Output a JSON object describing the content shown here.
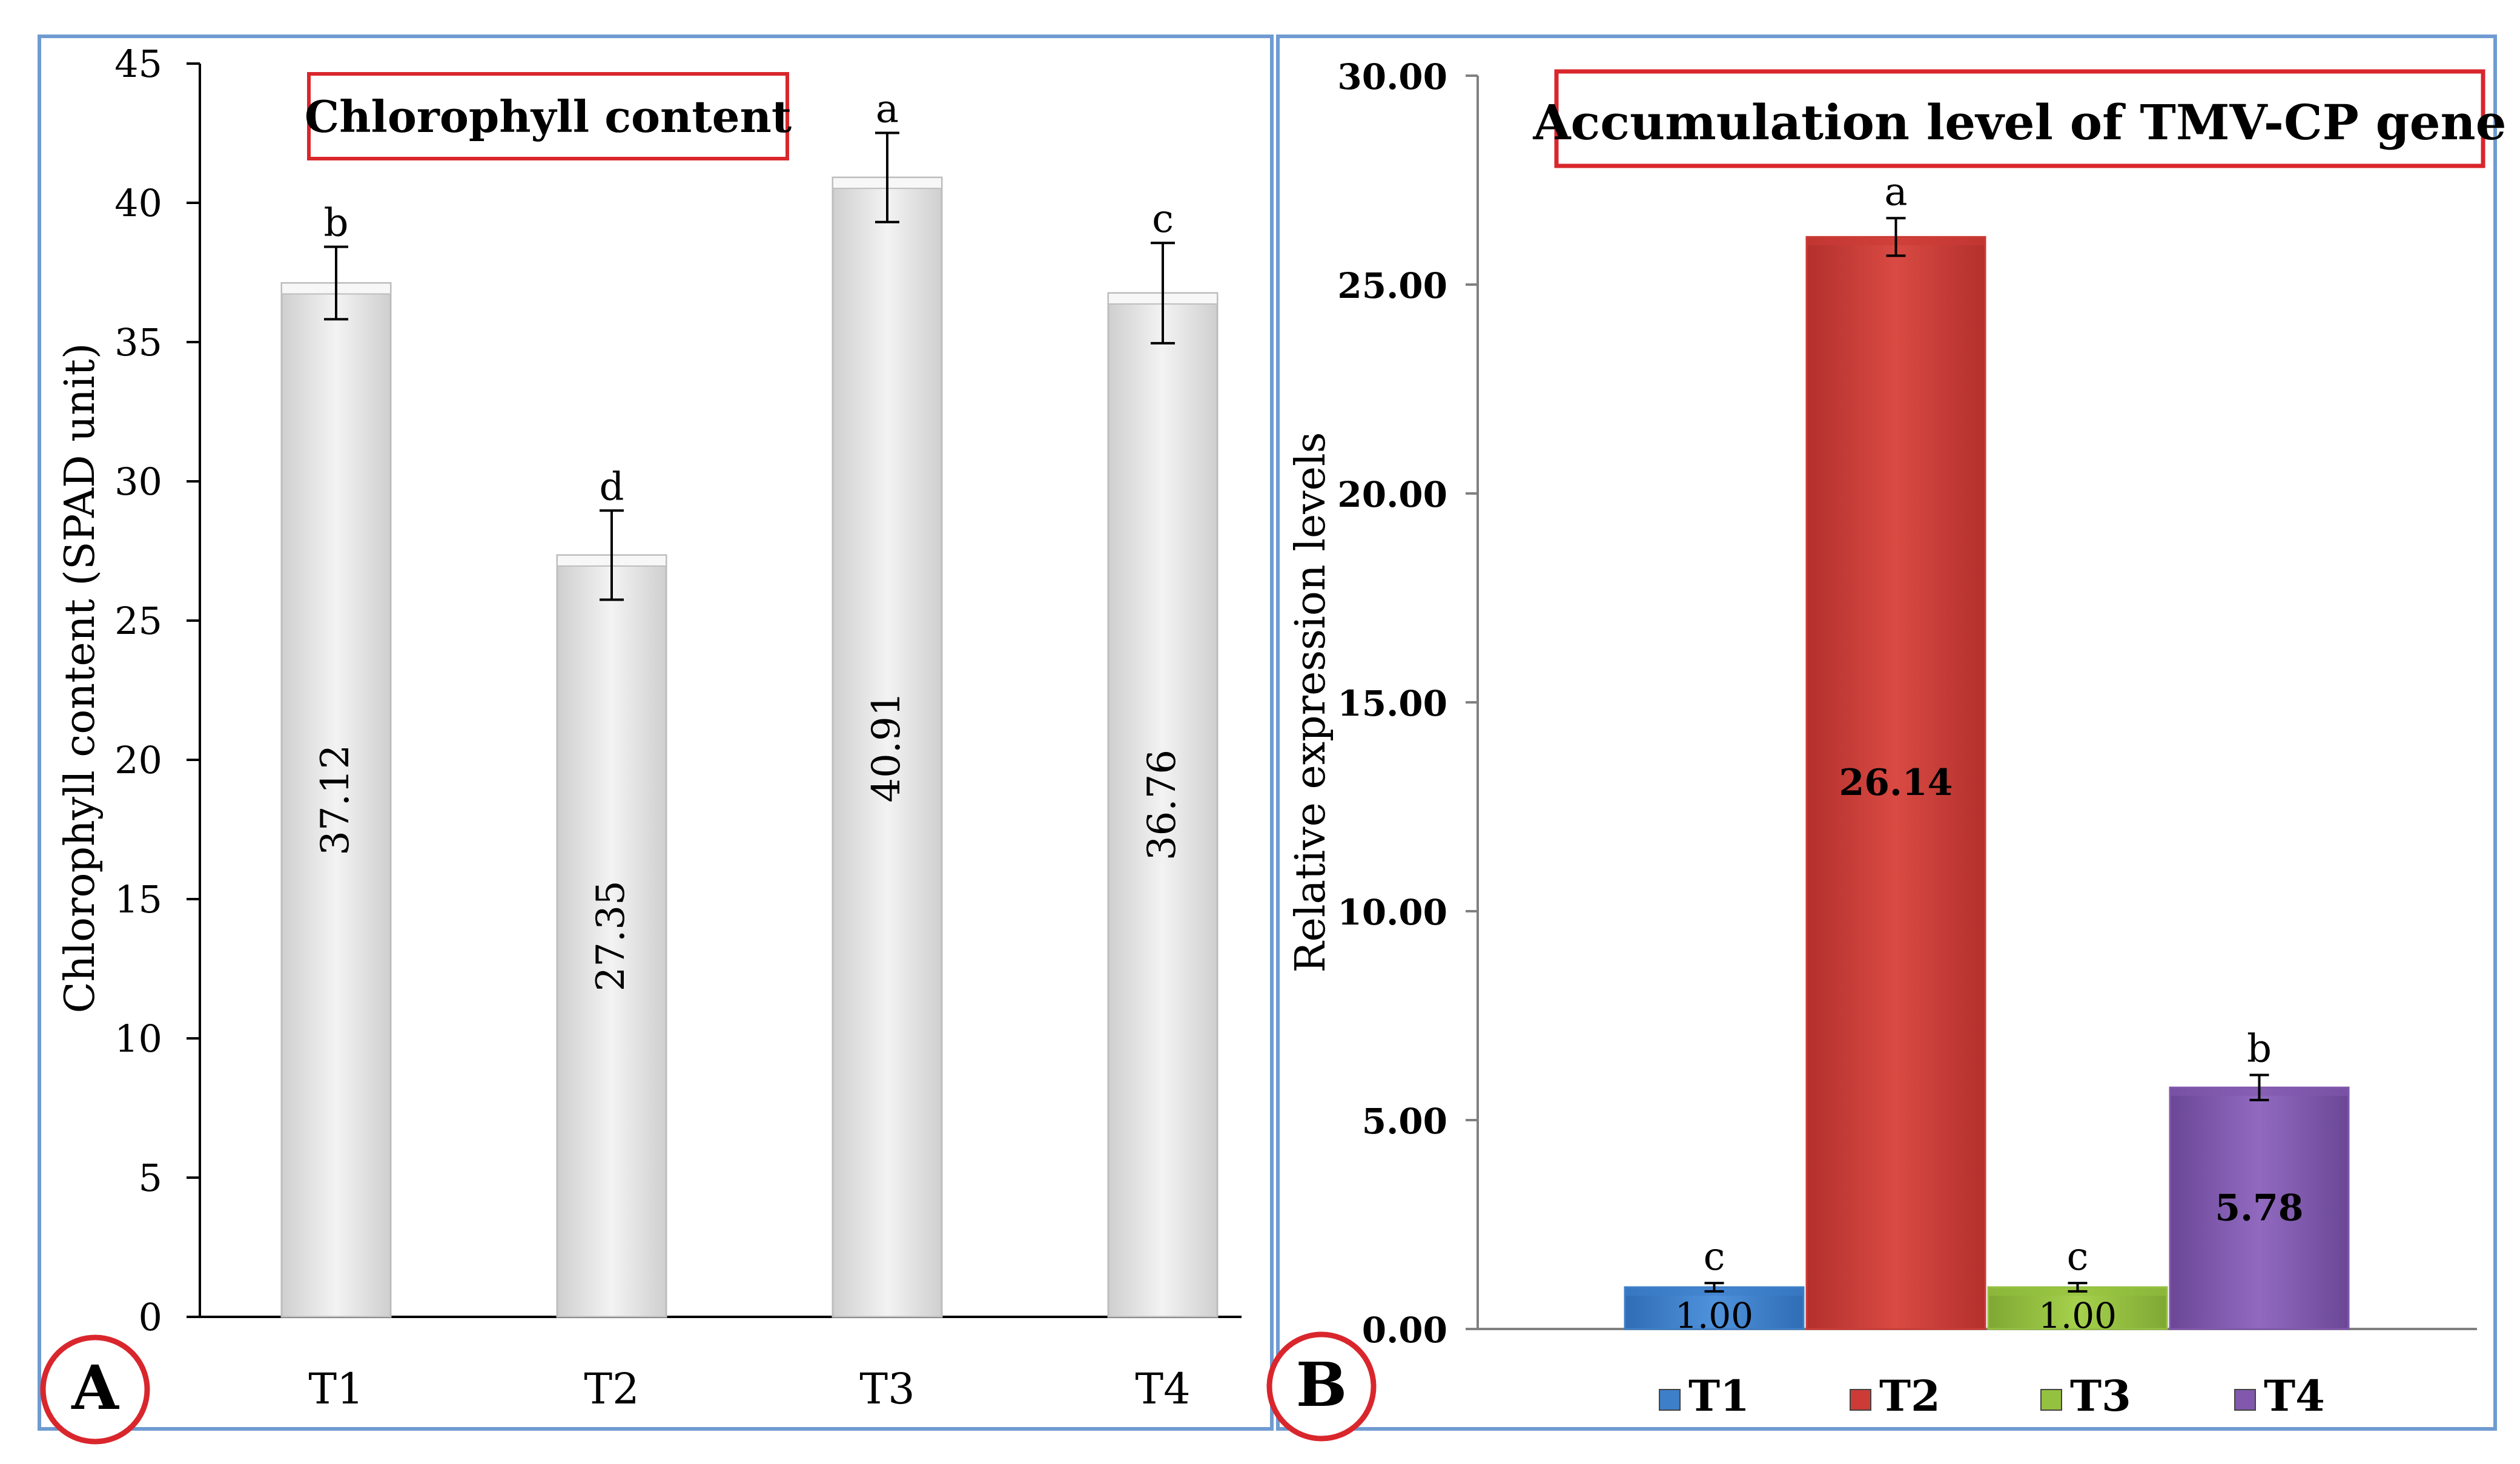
{
  "chart_data": [
    {
      "panel_label": "A",
      "type": "bar",
      "title": "Chlorophyll content",
      "ylabel": "Chlorophyll content (SPAD unit)",
      "xlabel": "",
      "categories": [
        "T1",
        "T2",
        "T3",
        "T4"
      ],
      "values": [
        37.12,
        27.35,
        40.91,
        36.76
      ],
      "value_labels": [
        "37.12",
        "27.35",
        "40.91",
        "36.76"
      ],
      "error": [
        1.3,
        1.6,
        1.6,
        1.8
      ],
      "letters": [
        "b",
        "d",
        "a",
        "c"
      ],
      "ylim": [
        0,
        45
      ],
      "yticks": [
        0,
        5,
        10,
        15,
        20,
        25,
        30,
        35,
        40,
        45
      ],
      "ytick_labels": [
        "0",
        "5",
        "10",
        "15",
        "20",
        "25",
        "30",
        "35",
        "40",
        "45"
      ],
      "grid": false,
      "legend": "none",
      "colors": {
        "bar": "#e4e4e4",
        "bar_edge": "#bdbdbd",
        "frame": "#6f9bd1",
        "title_box": "#d9262c",
        "panel_circle": "#d9262c"
      }
    },
    {
      "panel_label": "B",
      "type": "bar",
      "title": "Accumulation level of TMV-CP gene",
      "ylabel": "Relative expression levels",
      "xlabel": "",
      "categories": [
        "T1",
        "T2",
        "T3",
        "T4"
      ],
      "values": [
        1.0,
        26.14,
        1.0,
        5.78
      ],
      "value_labels": [
        "1.00",
        "26.14",
        "1.00",
        "5.78"
      ],
      "error": [
        0.1,
        0.45,
        0.1,
        0.3
      ],
      "letters": [
        "c",
        "a",
        "c",
        "b"
      ],
      "ylim": [
        0,
        30
      ],
      "yticks": [
        0,
        5,
        10,
        15,
        20,
        25,
        30
      ],
      "ytick_labels": [
        "0.00",
        "5.00",
        "10.00",
        "15.00",
        "20.00",
        "25.00",
        "30.00"
      ],
      "grid": false,
      "legend": "bottom",
      "series": [
        {
          "name": "T1",
          "value": 1.0,
          "color": "#3d7fc9"
        },
        {
          "name": "T2",
          "value": 26.14,
          "color": "#cc3b36"
        },
        {
          "name": "T3",
          "value": 1.0,
          "color": "#95c140"
        },
        {
          "name": "T4",
          "value": 5.78,
          "color": "#8158ad"
        }
      ],
      "colors": {
        "frame": "#6f9bd1",
        "title_box": "#d9262c",
        "panel_circle": "#d9262c"
      }
    }
  ]
}
